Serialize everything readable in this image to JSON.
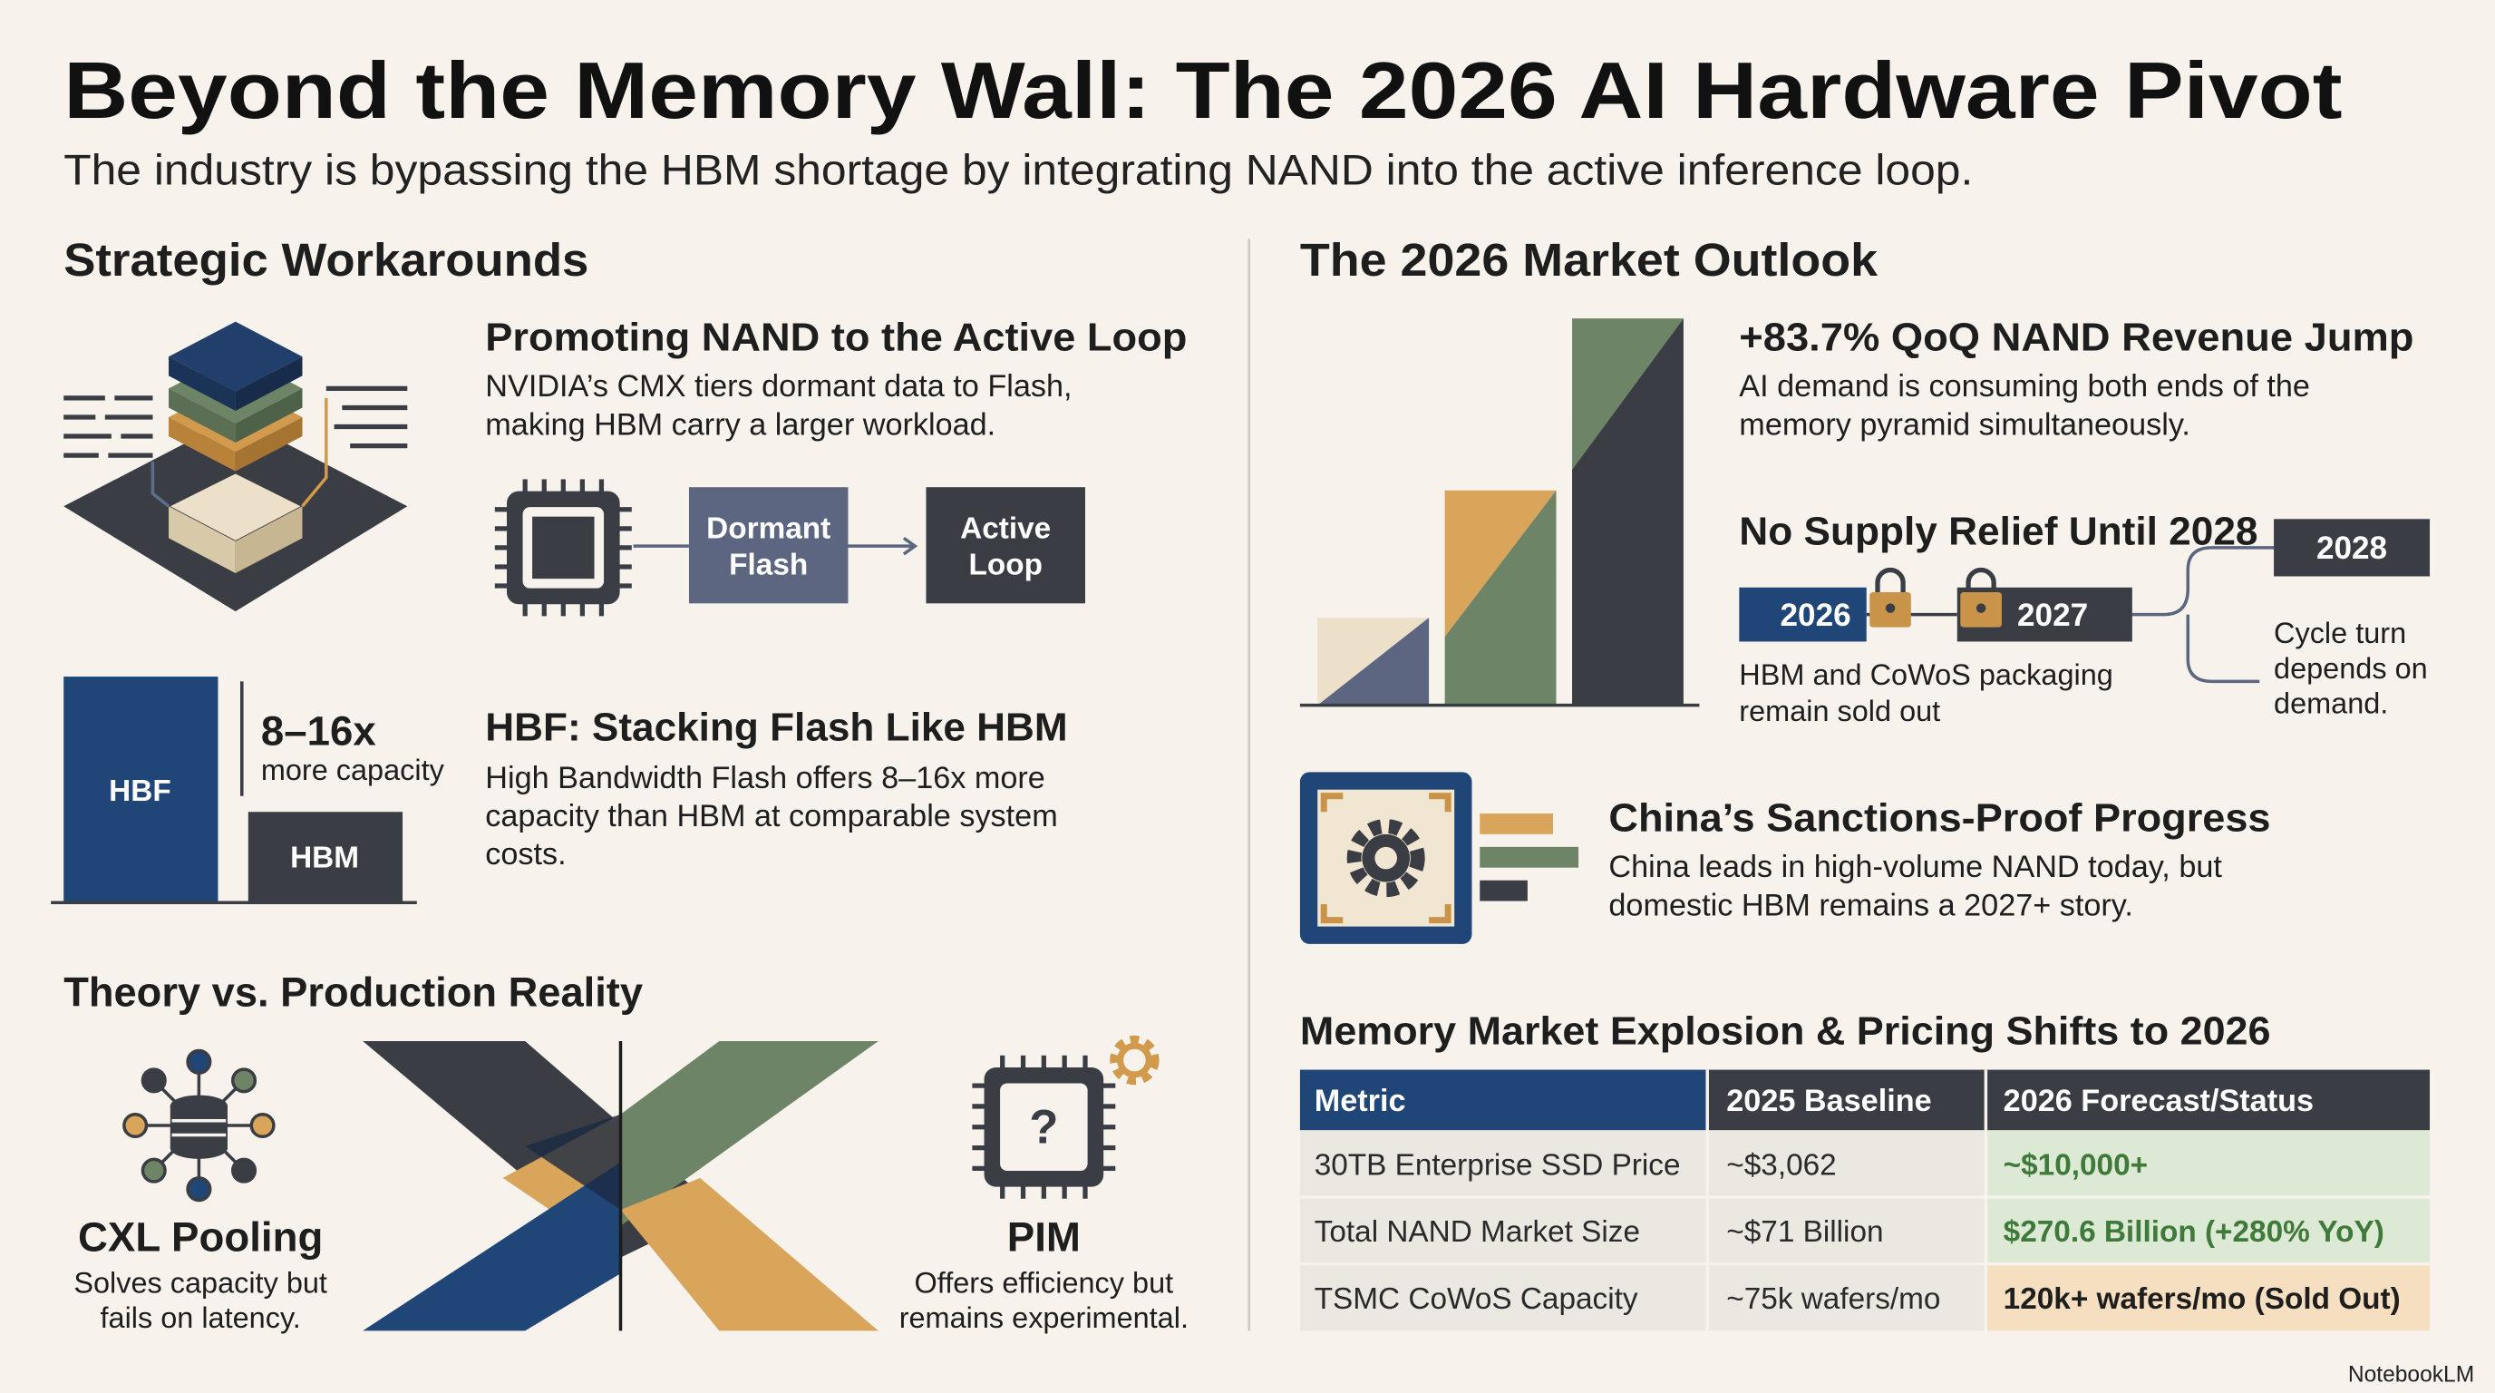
{
  "header": {
    "title": "Beyond the Memory Wall: The 2026 AI Hardware Pivot",
    "subtitle": "The industry is bypassing the HBM shortage by integrating NAND into the active inference loop."
  },
  "left": {
    "heading": "Strategic Workarounds",
    "nand": {
      "title": "Promoting NAND to the Active Loop",
      "body": [
        "NVIDIA’s CMX tiers dormant data to Flash,",
        "making HBM carry a larger workload."
      ],
      "flow": [
        [
          "Dormant",
          "Flash"
        ],
        [
          "Active",
          "Loop"
        ]
      ]
    },
    "hbf": {
      "bars": [
        "HBF",
        "HBM"
      ],
      "multiple": "8–16x",
      "multiple_note": "more capacity",
      "title": "HBF: Stacking Flash Like HBM",
      "body": [
        "High Bandwidth Flash offers 8–16x more",
        "capacity than HBM at comparable system",
        "costs."
      ]
    },
    "theory": {
      "heading": "Theory vs. Production Reality",
      "cxl": {
        "title": "CXL Pooling",
        "body": [
          "Solves capacity but",
          "fails on latency."
        ]
      },
      "pim": {
        "title": "PIM",
        "body": [
          "Offers efficiency but",
          "remains experimental."
        ]
      }
    }
  },
  "right": {
    "heading": "The 2026 Market Outlook",
    "jump": {
      "title": "+83.7% QoQ NAND Revenue Jump",
      "body": [
        "AI demand is consuming both ends of the",
        "memory pyramid simultaneously."
      ]
    },
    "supply": {
      "title": "No Supply Relief Until 2028",
      "years": [
        "2026",
        "2027",
        "2028"
      ],
      "note": [
        "HBM and CoWoS packaging",
        "remain sold out"
      ],
      "cycle": [
        "Cycle turn",
        "depends on",
        "demand."
      ]
    },
    "china": {
      "title": "China’s Sanctions-Proof Progress",
      "body": [
        "China leads in high-volume NAND today, but",
        "domestic HBM remains a 2027+ story."
      ]
    },
    "table": {
      "title": "Memory Market Explosion & Pricing Shifts to 2026",
      "columns": [
        "Metric",
        "2025 Baseline",
        "2026 Forecast/Status"
      ],
      "rows": [
        [
          "30TB Enterprise SSD Price",
          "~$3,062",
          "~$10,000+"
        ],
        [
          "Total NAND Market Size",
          "~$71 Billion",
          "$270.6 Billion (+280% YoY)"
        ],
        [
          "TSMC CoWoS Capacity",
          "~75k wafers/mo",
          "120k+ wafers/mo (Sold Out)"
        ]
      ]
    }
  },
  "footer": "NotebookLM"
}
